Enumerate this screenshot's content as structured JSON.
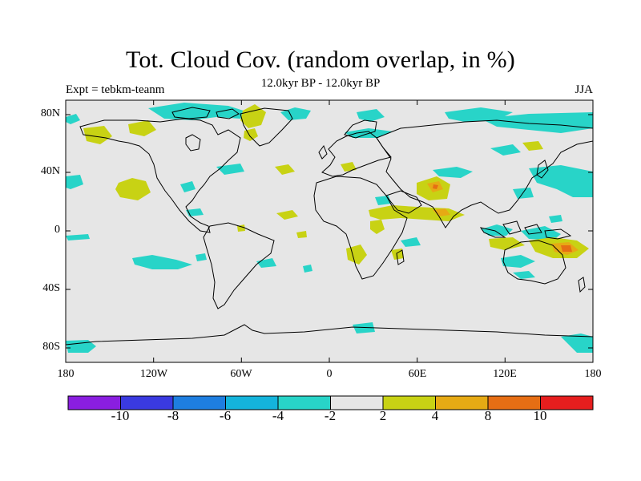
{
  "title": "Tot. Cloud Cov. (random overlap, in %)",
  "subtitle": "12.0kyr BP - 12.0kyr BP",
  "left_label": "Expt = tebkm-teanm",
  "right_label": "JJA",
  "lat_labels": [
    "80N",
    "40N",
    "0",
    "40S",
    "80S"
  ],
  "lon_labels": [
    "180",
    "120W",
    "60W",
    "0",
    "60E",
    "120E",
    "180"
  ],
  "colorbar": {
    "colors": [
      "#8a1ee0",
      "#3a3ae0",
      "#1e7ee0",
      "#14b4dc",
      "#28d4c8",
      "#e6e6e6",
      "#c8d214",
      "#e6aa14",
      "#e66e14",
      "#e61e1e"
    ],
    "labels": [
      "-10",
      "-8",
      "-6",
      "-4",
      "-2",
      "2",
      "4",
      "8",
      "10"
    ]
  },
  "colors": {
    "ocean_background": "#e6e6e6",
    "coast": "#000000",
    "positive_small": "#c8d214",
    "negative_small": "#28d4c8",
    "positive_large": "#e6aa14",
    "negative_large": "#14b4dc",
    "max_positive": "#e66e14"
  }
}
